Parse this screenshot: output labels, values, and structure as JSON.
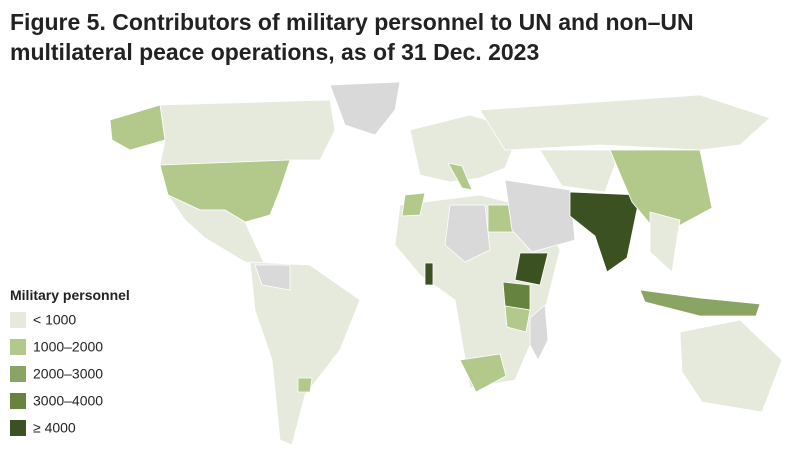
{
  "title": [
    "Figure 5. Contributors of military personnel to UN and non–UN",
    "multilateral peace operations, as of 31 Dec. 2023"
  ],
  "legend": {
    "title": "Military personnel",
    "items": [
      {
        "label": "< 1000",
        "color": "#e5eadc"
      },
      {
        "label": "1000–2000",
        "color": "#b3c98c"
      },
      {
        "label": "2000–3000",
        "color": "#8aa563"
      },
      {
        "label": "3000–4000",
        "color": "#66843f"
      },
      {
        "label": "≥ 4000",
        "color": "#3b5122"
      }
    ]
  }
}
